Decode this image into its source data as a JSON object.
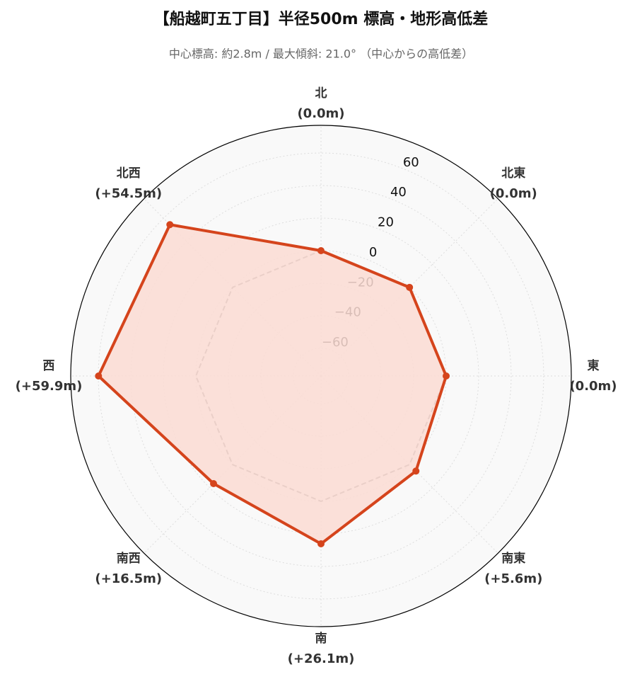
{
  "chart_data": {
    "type": "radar",
    "title": "【船越町五丁目】半径500m 標高・地形高低差",
    "subtitle": "中心標高: 約2.8m / 最大傾斜: 21.0° （中心からの高低差）",
    "categories": [
      "北",
      "北東",
      "東",
      "南東",
      "南",
      "南西",
      "西",
      "北西"
    ],
    "series": [
      {
        "color": "#d5441c",
        "fill": "#fbdcd3",
        "values": [
          0.0,
          0.0,
          0.0,
          5.6,
          26.1,
          16.5,
          59.9,
          54.5
        ],
        "value_labels": [
          "(0.0m)",
          "(0.0m)",
          "(0.0m)",
          "(+5.6m)",
          "(+26.1m)",
          "(+16.5m)",
          "(+59.9m)",
          "(+54.5m)"
        ]
      }
    ],
    "baseline": 0,
    "baseline_color": "#888888",
    "ylim": [
      -77,
      77
    ],
    "yticks": [
      {
        "value": -60,
        "label": "−60"
      },
      {
        "value": -40,
        "label": "−40"
      },
      {
        "value": -20,
        "label": "−20"
      },
      0,
      20,
      40,
      60
    ],
    "grid": true
  }
}
